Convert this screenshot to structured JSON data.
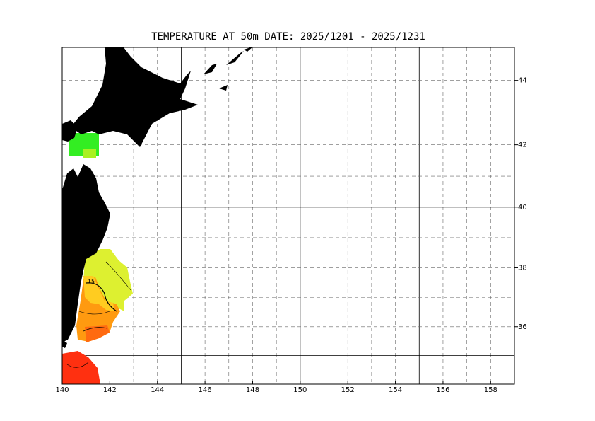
{
  "chart_data": {
    "type": "map",
    "title": "TEMPERATURE AT  50m  DATE:  2025/1201 -  2025/1231",
    "projection": "mercator",
    "xlim": [
      140,
      159
    ],
    "ylim": [
      34,
      45
    ],
    "xticks": [
      140,
      142,
      144,
      146,
      148,
      150,
      152,
      154,
      156,
      158
    ],
    "yticks": [
      36,
      38,
      40,
      42,
      44
    ],
    "grid": true,
    "land_color": "#000000",
    "contour_label": "15"
  }
}
